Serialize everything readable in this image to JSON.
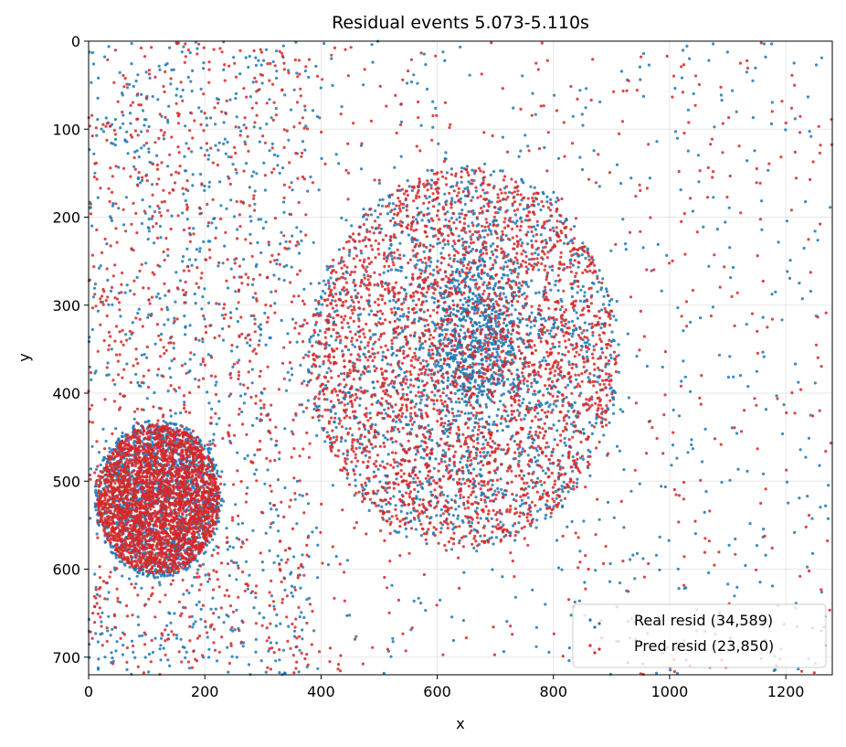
{
  "chart_data": {
    "type": "scatter",
    "title": "Residual events 5.073-5.110s",
    "xlabel": "x",
    "ylabel": "y",
    "xlim": [
      0,
      1280
    ],
    "ylim": [
      720,
      0
    ],
    "y_axis_inverted": true,
    "x_ticks": [
      0,
      200,
      400,
      600,
      800,
      1000,
      1200
    ],
    "y_ticks": [
      0,
      100,
      200,
      300,
      400,
      500,
      600,
      700
    ],
    "x_tick_labels": [
      "0",
      "200",
      "400",
      "600",
      "800",
      "1000",
      "1200"
    ],
    "y_tick_labels": [
      "0",
      "100",
      "200",
      "300",
      "400",
      "500",
      "600",
      "700"
    ],
    "grid": true,
    "legend_position": "lower-right",
    "series": [
      {
        "name": "Real resid (34,589)",
        "legend_label": "Real resid (34,589)",
        "color": "#1f77b4",
        "count": 34589,
        "dense_regions": [
          {
            "cx": 645,
            "cy": 360,
            "rx": 270,
            "ry": 220
          },
          {
            "cx": 120,
            "cy": 520,
            "rx": 110,
            "ry": 90
          }
        ],
        "core_region": {
          "cx": 670,
          "cy": 340,
          "rx": 85,
          "ry": 90
        }
      },
      {
        "name": "Pred resid (23,850)",
        "legend_label": "Pred resid (23,850)",
        "color": "#d62728",
        "count": 23850,
        "dense_regions": [
          {
            "cx": 645,
            "cy": 360,
            "rx": 265,
            "ry": 215
          },
          {
            "cx": 120,
            "cy": 520,
            "rx": 105,
            "ry": 85
          }
        ]
      }
    ]
  }
}
